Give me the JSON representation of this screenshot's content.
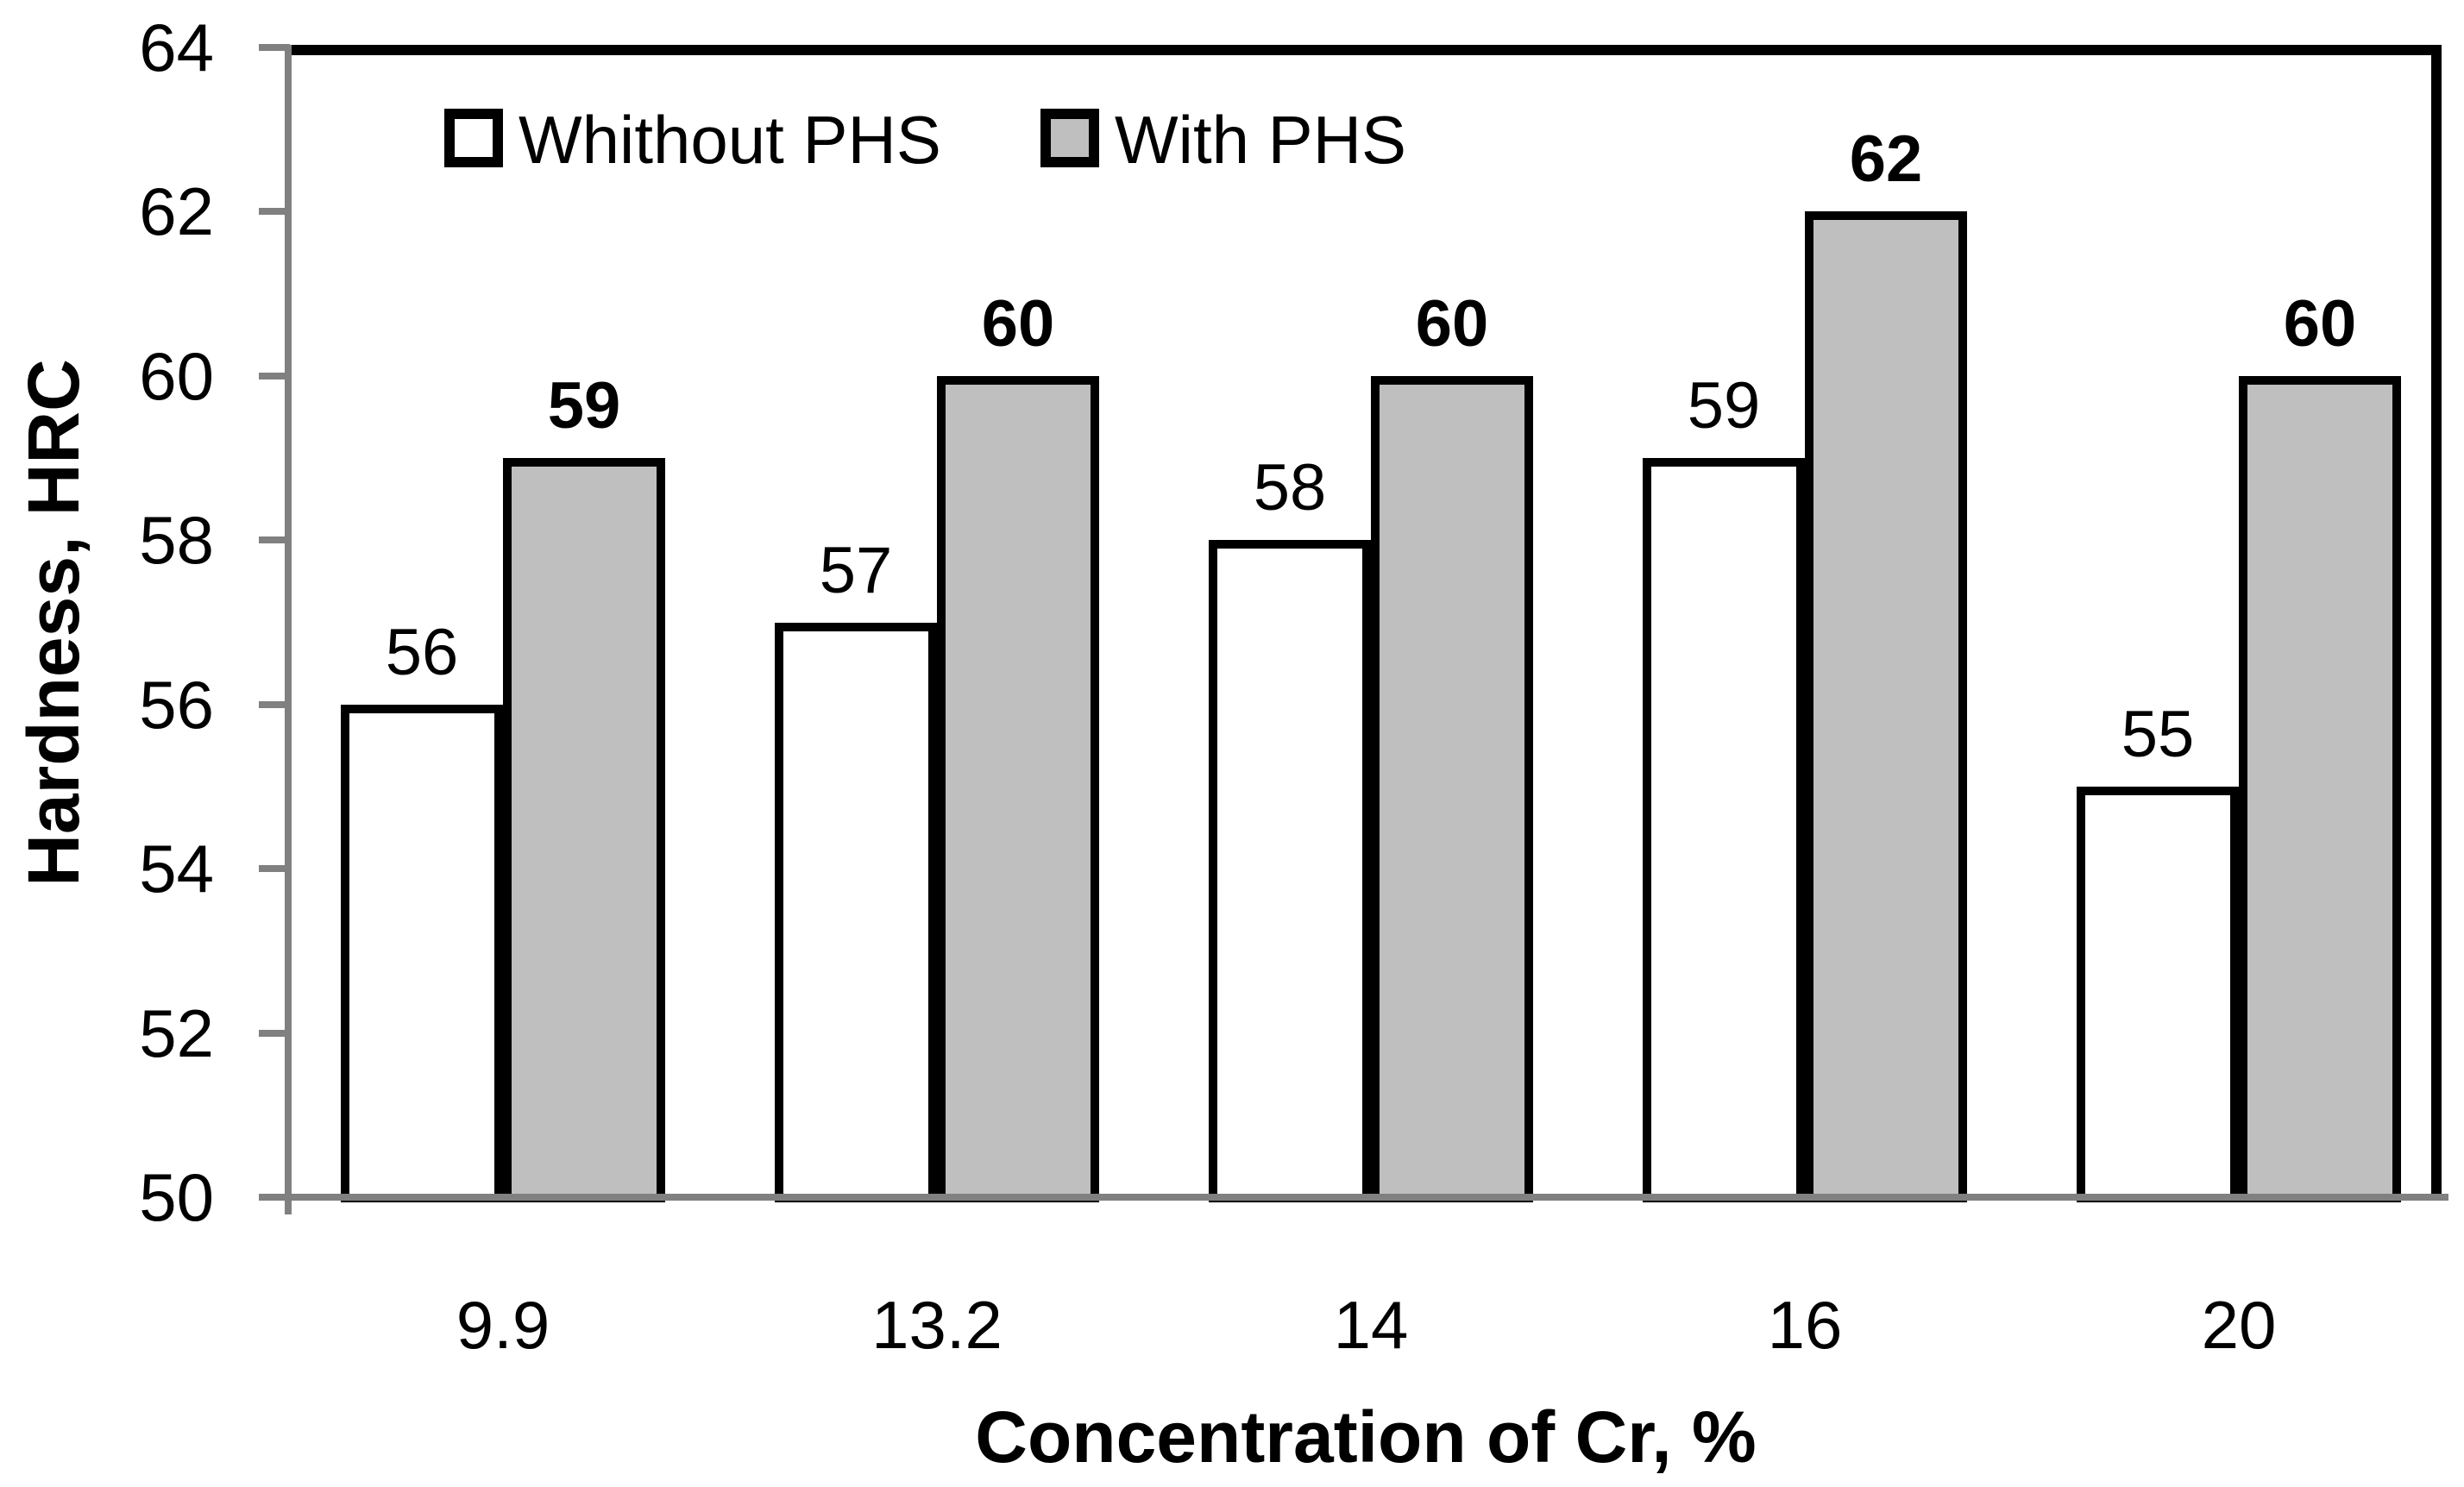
{
  "chart_data": {
    "type": "bar",
    "title": "",
    "categories": [
      "9.9",
      "13.2",
      "14",
      "16",
      "20"
    ],
    "series": [
      {
        "name": "Whithout PHS",
        "values": [
          56,
          57,
          58,
          59,
          55
        ],
        "fill": "#ffffff",
        "bold_labels": false
      },
      {
        "name": "With PHS",
        "values": [
          59,
          60,
          60,
          62,
          60
        ],
        "fill": "#bfbfbf",
        "bold_labels": true
      }
    ],
    "xlabel": "Concentration of Cr, %",
    "ylabel": "Hardness, HRC",
    "ylim": [
      50,
      64
    ],
    "yticks": [
      "50",
      "52",
      "54",
      "56",
      "58",
      "60",
      "62",
      "64"
    ],
    "grid": false,
    "data_labels_shown": true,
    "legend_position": "top-inside",
    "colors": {
      "bar_fill_with_phs": "#bfbfbf",
      "bar_fill_without_phs": "#ffffff",
      "bar_border": "#000000",
      "axis_line": "#808080",
      "plot_border": "#000000",
      "text": "#000000",
      "background": "#ffffff"
    }
  }
}
